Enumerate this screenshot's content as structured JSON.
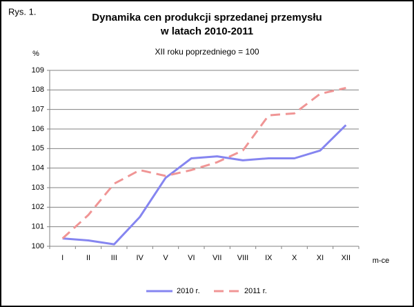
{
  "chart_data": {
    "type": "line",
    "label": "Rys. 1.",
    "title": [
      "Dynamika cen produkcji sprzedanej przemysłu",
      "w latach 2010-2011"
    ],
    "subtitle": "XII roku poprzedniego = 100",
    "ylabel": "%",
    "xlabel": "m-ce",
    "categories": [
      "I",
      "II",
      "III",
      "IV",
      "V",
      "VI",
      "VII",
      "VIII",
      "IX",
      "X",
      "XI",
      "XII"
    ],
    "series": [
      {
        "name": "2010 r.",
        "color": "#8585f0",
        "line_style": "solid",
        "values": [
          100.4,
          100.3,
          100.1,
          101.5,
          103.5,
          104.5,
          104.6,
          104.4,
          104.5,
          104.5,
          104.9,
          106.2
        ]
      },
      {
        "name": "2011 r.",
        "color": "#f09595",
        "line_style": "dashed",
        "values": [
          100.4,
          101.6,
          103.2,
          103.9,
          103.6,
          103.9,
          104.3,
          104.9,
          106.7,
          106.8,
          107.8,
          108.1
        ]
      }
    ],
    "ylim": [
      100,
      109
    ],
    "yticks": [
      100,
      101,
      102,
      103,
      104,
      105,
      106,
      107,
      108,
      109
    ],
    "grid": true,
    "legend": "bottom"
  }
}
